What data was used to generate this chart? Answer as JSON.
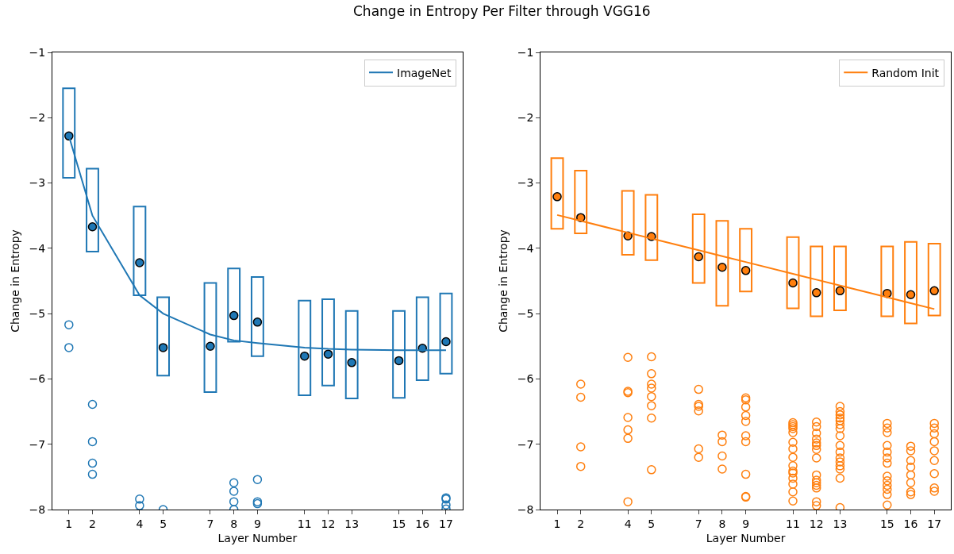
{
  "chart_data": [
    {
      "type": "bar",
      "title": "Change in Entropy Per Filter through VGG16",
      "xlabel": "Layer Number",
      "ylabel": "Change in Entropy",
      "x": [
        1,
        2,
        4,
        5,
        7,
        8,
        9,
        11,
        12,
        13,
        15,
        16,
        17
      ],
      "xlim": [
        0.3,
        17.7
      ],
      "xticks": [
        1,
        2,
        4,
        5,
        7,
        8,
        9,
        11,
        12,
        13,
        15,
        16,
        17
      ],
      "ylim": [
        -8,
        -1
      ],
      "yticks": [
        -1,
        -2,
        -3,
        -4,
        -5,
        -6,
        -7,
        -8
      ],
      "legend": "top right",
      "series": [
        {
          "color": "#1f77b4",
          "base": [
            -2.92,
            -4.05,
            -4.72,
            -5.95,
            -6.2,
            -5.43,
            -5.65,
            -6.25,
            -6.1,
            -6.3,
            -6.29,
            -6.02,
            -5.92
          ],
          "values": [
            1.37,
            1.27,
            1.36,
            1.2,
            1.67,
            1.12,
            1.21,
            1.45,
            1.32,
            1.34,
            1.33,
            1.27,
            1.23
          ]
        },
        {
          "type": "scatter",
          "color": "#1f77b4",
          "marker": "circle",
          "values": [
            -2.28,
            -3.67,
            -4.22,
            -5.52,
            -5.5,
            -5.03,
            -5.13,
            -5.65,
            -5.62,
            -5.75,
            -5.72,
            -5.53,
            -5.43
          ]
        },
        {
          "type": "line",
          "name": "ImageNet",
          "color": "#1f77b4",
          "values": [
            -2.28,
            -3.5,
            -4.72,
            -5.0,
            -5.32,
            -5.41,
            -5.45,
            -5.52,
            -5.54,
            -5.55,
            -5.56,
            -5.56,
            -5.56
          ]
        },
        {
          "type": "scatter",
          "color": "#1f77b4",
          "marker": "circle-open",
          "x": [
            1,
            1,
            2,
            2,
            2,
            2,
            4,
            4,
            5,
            8,
            8,
            8,
            8,
            9,
            9,
            9,
            17,
            17,
            17,
            17
          ],
          "values": [
            -5.17,
            -5.52,
            -6.39,
            -6.96,
            -7.29,
            -7.46,
            -7.84,
            -7.94,
            -8.0,
            -7.59,
            -7.72,
            -7.88,
            -8.0,
            -7.54,
            -7.88,
            -7.91,
            -7.82,
            -7.84,
            -7.93,
            -7.99
          ]
        }
      ]
    },
    {
      "type": "bar",
      "xlabel": "Layer Number",
      "ylabel": "Change in Entropy",
      "x": [
        1,
        2,
        4,
        5,
        7,
        8,
        9,
        11,
        12,
        13,
        15,
        16,
        17
      ],
      "xlim": [
        0.3,
        17.7
      ],
      "xticks": [
        1,
        2,
        4,
        5,
        7,
        8,
        9,
        11,
        12,
        13,
        15,
        16,
        17
      ],
      "ylim": [
        -8,
        -1
      ],
      "yticks": [
        -1,
        -2,
        -3,
        -4,
        -5,
        -6,
        -7,
        -8
      ],
      "legend": "top right",
      "series": [
        {
          "color": "#ff7f0e",
          "base": [
            -3.7,
            -3.77,
            -4.1,
            -4.18,
            -4.53,
            -4.88,
            -4.66,
            -4.92,
            -5.04,
            -4.95,
            -5.04,
            -5.15,
            -5.03
          ],
          "values": [
            1.08,
            0.96,
            0.98,
            1.0,
            1.05,
            1.3,
            0.96,
            1.09,
            1.07,
            0.98,
            1.07,
            1.25,
            1.1
          ]
        },
        {
          "type": "scatter",
          "color": "#ff7f0e",
          "marker": "circle",
          "values": [
            -3.21,
            -3.53,
            -3.81,
            -3.82,
            -4.13,
            -4.29,
            -4.34,
            -4.53,
            -4.68,
            -4.65,
            -4.69,
            -4.71,
            -4.65
          ]
        },
        {
          "type": "line",
          "name": "Random Init",
          "color": "#ff7f0e",
          "values": [
            -3.49,
            -3.58,
            -3.76,
            -3.85,
            -4.03,
            -4.12,
            -4.21,
            -4.39,
            -4.48,
            -4.57,
            -4.75,
            -4.84,
            -4.93
          ]
        },
        {
          "type": "scatter",
          "color": "#ff7f0e",
          "marker": "circle-open",
          "x": [
            2,
            2,
            2,
            2,
            4,
            4,
            4,
            4,
            4,
            4,
            4,
            5,
            5,
            5,
            5,
            5,
            5,
            5,
            5,
            7,
            7,
            7,
            7,
            7,
            7,
            8,
            8,
            8,
            8,
            9,
            9,
            9,
            9,
            9,
            9,
            9,
            9,
            9,
            9,
            11,
            11,
            11,
            11,
            11,
            11,
            11,
            11,
            11,
            11,
            11,
            11,
            11,
            11,
            11,
            12,
            12,
            12,
            12,
            12,
            12,
            12,
            12,
            12,
            12,
            12,
            12,
            12,
            12,
            12,
            13,
            13,
            13,
            13,
            13,
            13,
            13,
            13,
            13,
            13,
            13,
            13,
            13,
            13,
            13,
            13,
            15,
            15,
            15,
            15,
            15,
            15,
            15,
            15,
            15,
            15,
            15,
            15,
            15,
            16,
            16,
            16,
            16,
            16,
            16,
            16,
            16,
            17,
            17,
            17,
            17,
            17,
            17,
            17,
            17,
            17
          ],
          "values": [
            -6.08,
            -6.28,
            -7.04,
            -7.34,
            -5.67,
            -6.19,
            -6.21,
            -6.59,
            -6.78,
            -6.91,
            -7.88,
            -5.66,
            -5.92,
            -6.08,
            -6.14,
            -6.27,
            -6.41,
            -6.6,
            -7.39,
            -6.16,
            -6.39,
            -6.42,
            -6.49,
            -7.07,
            -7.2,
            -6.86,
            -6.96,
            -7.18,
            -7.38,
            -6.29,
            -6.32,
            -6.43,
            -6.56,
            -6.65,
            -6.87,
            -6.96,
            -7.46,
            -7.8,
            -7.81,
            -6.67,
            -6.7,
            -6.73,
            -6.76,
            -6.82,
            -6.97,
            -7.07,
            -7.2,
            -7.33,
            -7.41,
            -7.44,
            -7.52,
            -7.61,
            -7.73,
            -7.87,
            -6.66,
            -6.73,
            -6.83,
            -6.92,
            -6.98,
            -7.02,
            -7.08,
            -7.21,
            -7.47,
            -7.55,
            -7.59,
            -7.63,
            -7.67,
            -7.88,
            -7.94,
            -6.42,
            -6.5,
            -6.55,
            -6.6,
            -6.64,
            -6.7,
            -6.76,
            -6.87,
            -7.02,
            -7.12,
            -7.21,
            -7.27,
            -7.33,
            -7.38,
            -7.52,
            -7.97,
            -6.68,
            -6.75,
            -6.82,
            -7.02,
            -7.12,
            -7.21,
            -7.29,
            -7.49,
            -7.56,
            -7.63,
            -7.69,
            -7.77,
            -7.93,
            -7.03,
            -7.1,
            -7.25,
            -7.35,
            -7.47,
            -7.59,
            -7.73,
            -7.77,
            -6.68,
            -6.75,
            -6.84,
            -6.96,
            -7.1,
            -7.25,
            -7.45,
            -7.67,
            -7.72
          ]
        }
      ]
    }
  ]
}
